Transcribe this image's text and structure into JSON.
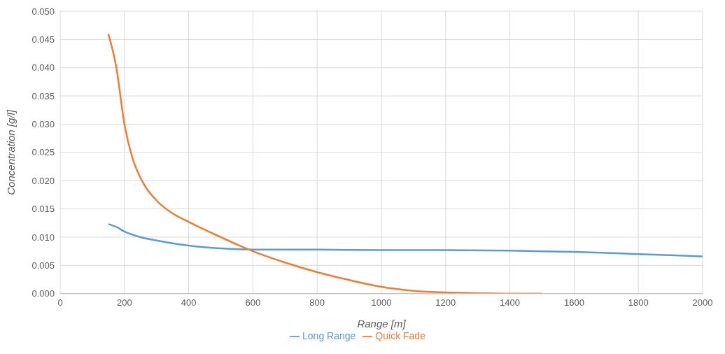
{
  "chart_data": {
    "type": "line",
    "xlabel": "Range [m]",
    "ylabel": "Concentration [g/l]",
    "xlim": [
      0,
      2000
    ],
    "xticks": [
      0,
      200,
      400,
      600,
      800,
      1000,
      1200,
      1400,
      1600,
      1800,
      2000
    ],
    "ylim": [
      0,
      0.05
    ],
    "yticks": [
      {
        "value": 0,
        "label": "0.000"
      },
      {
        "value": 0.005,
        "label": "0.005"
      },
      {
        "value": 0.01,
        "label": "0.010"
      },
      {
        "value": 0.015,
        "label": "0.015"
      },
      {
        "value": 0.02,
        "label": "0.020"
      },
      {
        "value": 0.025,
        "label": "0.025"
      },
      {
        "value": 0.03,
        "label": "0.030"
      },
      {
        "value": 0.035,
        "label": "0.035"
      },
      {
        "value": 0.04,
        "label": "0.040"
      },
      {
        "value": 0.045,
        "label": "0.045"
      },
      {
        "value": 0.05,
        "label": "0.050"
      }
    ],
    "grid": true,
    "legend": "bottom",
    "marker": "none",
    "line_style": "solid",
    "series": [
      {
        "name": "Long Range",
        "color": "#5b9bd5",
        "x": [
          150,
          175,
          200,
          250,
          300,
          400,
          500,
          600,
          800,
          1000,
          1200,
          1400,
          1600,
          1800,
          2000
        ],
        "values": [
          0.0123,
          0.0118,
          0.011,
          0.01,
          0.0094,
          0.0085,
          0.008,
          0.0078,
          0.0078,
          0.0077,
          0.0077,
          0.0076,
          0.0074,
          0.007,
          0.0066
        ]
      },
      {
        "name": "Quick Fade",
        "color": "#ed7d31",
        "x": [
          150,
          175,
          200,
          225,
          250,
          300,
          350,
          400,
          450,
          500,
          550,
          600,
          700,
          800,
          900,
          1000,
          1100,
          1200,
          1300,
          1400,
          1500
        ],
        "values": [
          0.046,
          0.04,
          0.03,
          0.024,
          0.0205,
          0.0165,
          0.0142,
          0.0127,
          0.0113,
          0.01,
          0.0087,
          0.0075,
          0.0055,
          0.0038,
          0.0024,
          0.0012,
          0.0005,
          0.0002,
          0.0001,
          0,
          0
        ]
      }
    ]
  }
}
